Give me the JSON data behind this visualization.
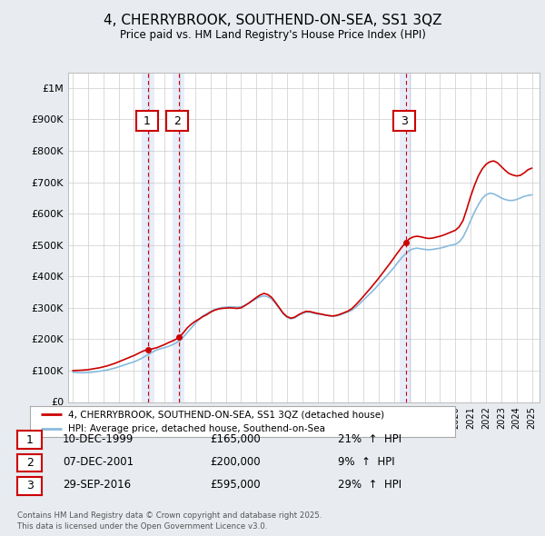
{
  "title": "4, CHERRYBROOK, SOUTHEND-ON-SEA, SS1 3QZ",
  "subtitle": "Price paid vs. HM Land Registry's House Price Index (HPI)",
  "ylabel_ticks": [
    "£0",
    "£100K",
    "£200K",
    "£300K",
    "£400K",
    "£500K",
    "£600K",
    "£700K",
    "£800K",
    "£900K",
    "£1M"
  ],
  "ytick_values": [
    0,
    100000,
    200000,
    300000,
    400000,
    500000,
    600000,
    700000,
    800000,
    900000,
    1000000
  ],
  "ylim": [
    0,
    1050000
  ],
  "xlim_start": 1994.7,
  "xlim_end": 2025.5,
  "bg_color": "#e8ecf0",
  "plot_bg_color": "#ffffff",
  "grid_color": "#cccccc",
  "sale_color": "#cc0000",
  "hpi_color": "#88bbdd",
  "legend_sale": "4, CHERRYBROOK, SOUTHEND-ON-SEA, SS1 3QZ (detached house)",
  "legend_hpi": "HPI: Average price, detached house, Southend-on-Sea",
  "transactions": [
    {
      "num": 1,
      "date": "10-DEC-1999",
      "price": 165000,
      "year": 1999.92,
      "pct": "21%",
      "dir": "↑"
    },
    {
      "num": 2,
      "date": "07-DEC-2001",
      "price": 200000,
      "year": 2001.92,
      "pct": "9%",
      "dir": "↑"
    },
    {
      "num": 3,
      "date": "29-SEP-2016",
      "price": 595000,
      "year": 2016.75,
      "pct": "29%",
      "dir": "↑"
    }
  ],
  "footer1": "Contains HM Land Registry data © Crown copyright and database right 2025.",
  "footer2": "This data is licensed under the Open Government Licence v3.0.",
  "hpi_data_x": [
    1995.0,
    1995.25,
    1995.5,
    1995.75,
    1996.0,
    1996.25,
    1996.5,
    1996.75,
    1997.0,
    1997.25,
    1997.5,
    1997.75,
    1998.0,
    1998.25,
    1998.5,
    1998.75,
    1999.0,
    1999.25,
    1999.5,
    1999.75,
    2000.0,
    2000.25,
    2000.5,
    2000.75,
    2001.0,
    2001.25,
    2001.5,
    2001.75,
    2002.0,
    2002.25,
    2002.5,
    2002.75,
    2003.0,
    2003.25,
    2003.5,
    2003.75,
    2004.0,
    2004.25,
    2004.5,
    2004.75,
    2005.0,
    2005.25,
    2005.5,
    2005.75,
    2006.0,
    2006.25,
    2006.5,
    2006.75,
    2007.0,
    2007.25,
    2007.5,
    2007.75,
    2008.0,
    2008.25,
    2008.5,
    2008.75,
    2009.0,
    2009.25,
    2009.5,
    2009.75,
    2010.0,
    2010.25,
    2010.5,
    2010.75,
    2011.0,
    2011.25,
    2011.5,
    2011.75,
    2012.0,
    2012.25,
    2012.5,
    2012.75,
    2013.0,
    2013.25,
    2013.5,
    2013.75,
    2014.0,
    2014.25,
    2014.5,
    2014.75,
    2015.0,
    2015.25,
    2015.5,
    2015.75,
    2016.0,
    2016.25,
    2016.5,
    2016.75,
    2017.0,
    2017.25,
    2017.5,
    2017.75,
    2018.0,
    2018.25,
    2018.5,
    2018.75,
    2019.0,
    2019.25,
    2019.5,
    2019.75,
    2020.0,
    2020.25,
    2020.5,
    2020.75,
    2021.0,
    2021.25,
    2021.5,
    2021.75,
    2022.0,
    2022.25,
    2022.5,
    2022.75,
    2023.0,
    2023.25,
    2023.5,
    2023.75,
    2024.0,
    2024.25,
    2024.5,
    2024.75,
    2025.0
  ],
  "hpi_data_y": [
    95000,
    94000,
    93000,
    93500,
    94000,
    95000,
    96500,
    98000,
    100000,
    102000,
    105000,
    108000,
    112000,
    116000,
    120000,
    124000,
    128000,
    133000,
    139000,
    146000,
    153000,
    160000,
    166000,
    170000,
    173000,
    177000,
    182000,
    188000,
    196000,
    208000,
    222000,
    236000,
    250000,
    263000,
    274000,
    281000,
    288000,
    294000,
    298000,
    301000,
    302000,
    303000,
    303000,
    302000,
    303000,
    308000,
    315000,
    322000,
    329000,
    335000,
    338000,
    335000,
    328000,
    314000,
    298000,
    281000,
    270000,
    265000,
    268000,
    276000,
    282000,
    286000,
    286000,
    283000,
    280000,
    279000,
    277000,
    275000,
    273000,
    275000,
    278000,
    283000,
    287000,
    293000,
    302000,
    313000,
    325000,
    337000,
    349000,
    361000,
    375000,
    388000,
    401000,
    415000,
    429000,
    445000,
    460000,
    472000,
    483000,
    488000,
    490000,
    488000,
    486000,
    485000,
    486000,
    488000,
    490000,
    493000,
    497000,
    500000,
    502000,
    510000,
    525000,
    550000,
    578000,
    605000,
    628000,
    648000,
    660000,
    665000,
    663000,
    657000,
    650000,
    645000,
    642000,
    642000,
    645000,
    650000,
    655000,
    658000,
    660000
  ],
  "sale_data_x": [
    1995.0,
    1995.25,
    1995.5,
    1995.75,
    1996.0,
    1996.25,
    1996.5,
    1996.75,
    1997.0,
    1997.25,
    1997.5,
    1997.75,
    1998.0,
    1998.25,
    1998.5,
    1998.75,
    1999.0,
    1999.25,
    1999.5,
    1999.75,
    2000.0,
    2000.25,
    2000.5,
    2000.75,
    2001.0,
    2001.25,
    2001.5,
    2001.75,
    2002.0,
    2002.25,
    2002.5,
    2002.75,
    2003.0,
    2003.25,
    2003.5,
    2003.75,
    2004.0,
    2004.25,
    2004.5,
    2004.75,
    2005.0,
    2005.25,
    2005.5,
    2005.75,
    2006.0,
    2006.25,
    2006.5,
    2006.75,
    2007.0,
    2007.25,
    2007.5,
    2007.75,
    2008.0,
    2008.25,
    2008.5,
    2008.75,
    2009.0,
    2009.25,
    2009.5,
    2009.75,
    2010.0,
    2010.25,
    2010.5,
    2010.75,
    2011.0,
    2011.25,
    2011.5,
    2011.75,
    2012.0,
    2012.25,
    2012.5,
    2012.75,
    2013.0,
    2013.25,
    2013.5,
    2013.75,
    2014.0,
    2014.25,
    2014.5,
    2014.75,
    2015.0,
    2015.25,
    2015.5,
    2015.75,
    2016.0,
    2016.25,
    2016.5,
    2016.75,
    2017.0,
    2017.25,
    2017.5,
    2017.75,
    2018.0,
    2018.25,
    2018.5,
    2018.75,
    2019.0,
    2019.25,
    2019.5,
    2019.75,
    2020.0,
    2020.25,
    2020.5,
    2020.75,
    2021.0,
    2021.25,
    2021.5,
    2021.75,
    2022.0,
    2022.25,
    2022.5,
    2022.75,
    2023.0,
    2023.25,
    2023.5,
    2023.75,
    2024.0,
    2024.25,
    2024.5,
    2024.75,
    2025.0
  ],
  "sale_data_y": [
    100000,
    100500,
    101000,
    102000,
    103000,
    105000,
    107000,
    109000,
    112000,
    115000,
    119000,
    123000,
    128000,
    133000,
    138000,
    143000,
    148000,
    154000,
    160000,
    165000,
    167000,
    170000,
    173000,
    178000,
    183000,
    189000,
    194000,
    200000,
    208000,
    222000,
    237000,
    248000,
    257000,
    264000,
    272000,
    278000,
    286000,
    292000,
    296000,
    298000,
    299000,
    300000,
    299000,
    298000,
    300000,
    307000,
    315000,
    324000,
    333000,
    341000,
    346000,
    342000,
    333000,
    317000,
    300000,
    283000,
    272000,
    267000,
    270000,
    278000,
    284000,
    289000,
    288000,
    285000,
    282000,
    280000,
    277000,
    275000,
    274000,
    276000,
    280000,
    285000,
    290000,
    298000,
    310000,
    323000,
    337000,
    351000,
    365000,
    380000,
    395000,
    411000,
    427000,
    443000,
    460000,
    477000,
    493000,
    508000,
    520000,
    526000,
    528000,
    526000,
    523000,
    521000,
    522000,
    525000,
    528000,
    532000,
    537000,
    542000,
    547000,
    558000,
    578000,
    615000,
    655000,
    690000,
    720000,
    742000,
    757000,
    765000,
    768000,
    762000,
    750000,
    738000,
    728000,
    723000,
    720000,
    722000,
    730000,
    740000,
    745000
  ]
}
